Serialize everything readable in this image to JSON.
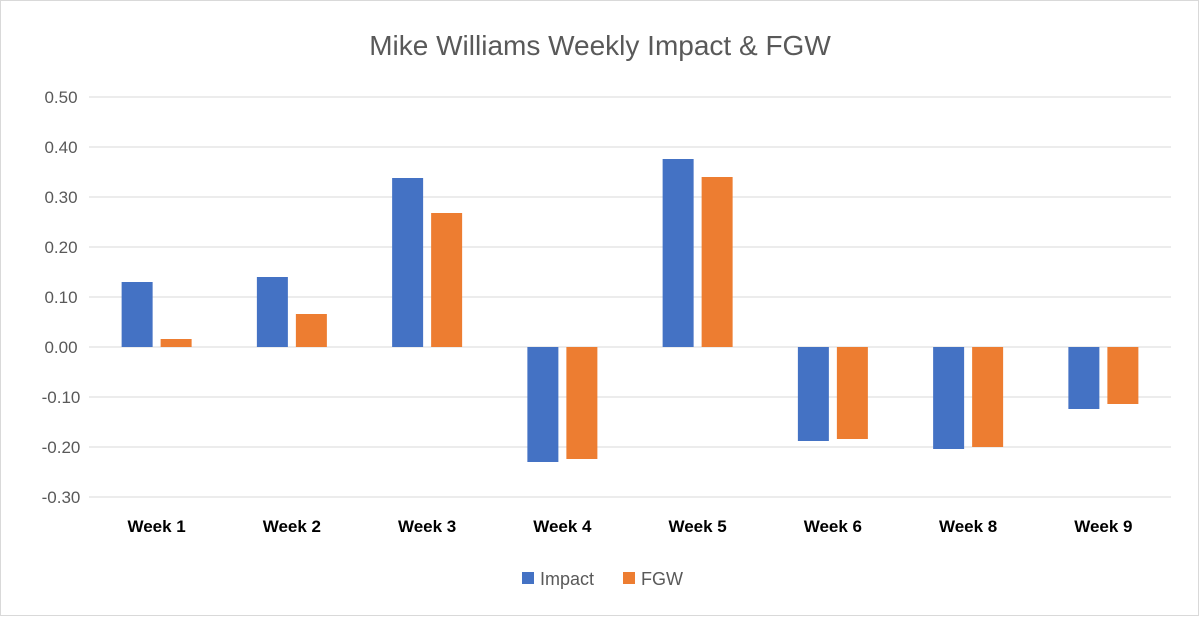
{
  "chart_data": {
    "type": "bar",
    "title": "Mike Williams Weekly Impact & FGW",
    "xlabel": "",
    "ylabel": "",
    "categories": [
      "Week 1",
      "Week 2",
      "Week 3",
      "Week 4",
      "Week 5",
      "Week 6",
      "Week 8",
      "Week 9"
    ],
    "series": [
      {
        "name": "Impact",
        "color": "#4472c4",
        "values": [
          0.13,
          0.14,
          0.338,
          -0.23,
          0.376,
          -0.188,
          -0.204,
          -0.124
        ]
      },
      {
        "name": "FGW",
        "color": "#ed7d31",
        "values": [
          0.016,
          0.066,
          0.268,
          -0.224,
          0.34,
          -0.184,
          -0.2,
          -0.114
        ]
      }
    ],
    "ylim": [
      -0.3,
      0.5
    ],
    "yticks": [
      "0.50",
      "0.40",
      "0.30",
      "0.20",
      "0.10",
      "0.00",
      "-0.10",
      "-0.20",
      "-0.30"
    ],
    "grid": true,
    "legend": "bottom"
  }
}
